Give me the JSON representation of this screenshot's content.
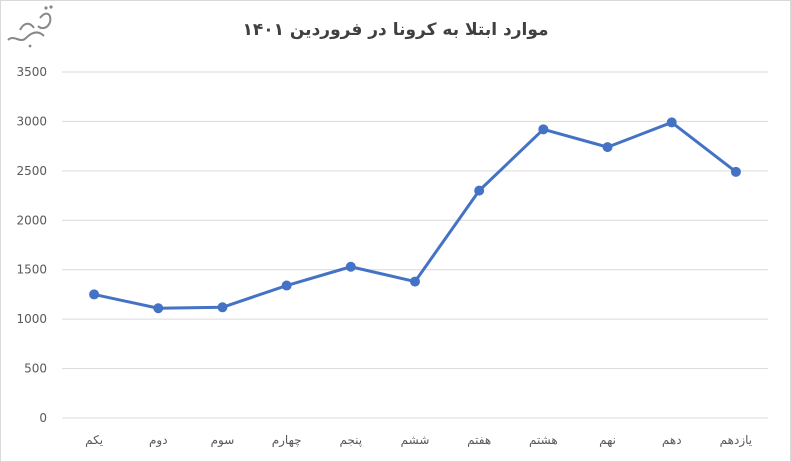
{
  "chart_data": {
    "type": "line",
    "title": "موارد ابتلا به کرونا در فروردین ۱۴۰۱",
    "xlabel": "",
    "ylabel": "",
    "categories": [
      "یکم",
      "دوم",
      "سوم",
      "چهارم",
      "پنجم",
      "ششم",
      "هفتم",
      "هشتم",
      "نهم",
      "دهم",
      "یازدهم"
    ],
    "series": [
      {
        "values": [
          1250,
          1110,
          1120,
          1340,
          1530,
          1380,
          2300,
          2920,
          2740,
          2990,
          2490
        ]
      }
    ],
    "ylim": [
      0,
      3500
    ],
    "yticks": [
      0,
      500,
      1000,
      1500,
      2000,
      2500,
      3000,
      3500
    ],
    "grid": true,
    "legend": "none",
    "colors": {
      "line": "#4472c4",
      "grid": "#d9d9d9",
      "tick_text": "#595959",
      "title_text": "#404040"
    }
  }
}
